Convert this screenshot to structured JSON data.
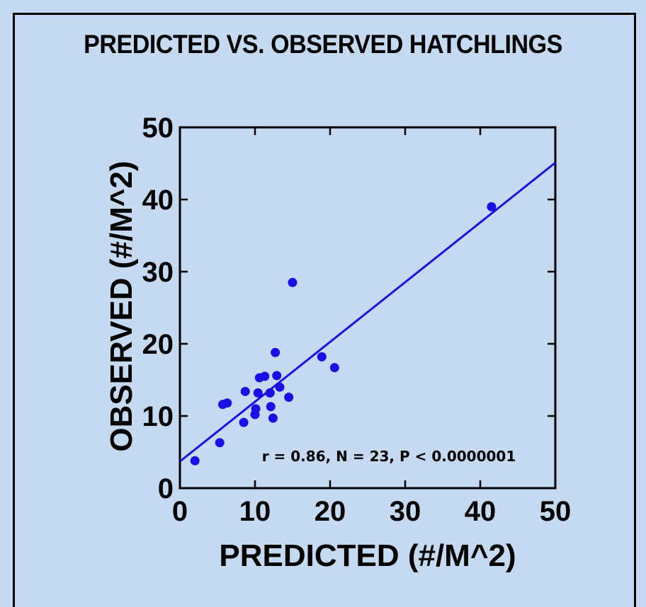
{
  "chart_data": {
    "type": "scatter",
    "title": "PREDICTED VS. OBSERVED HATCHLINGS",
    "xlabel": "PREDICTED (#/M^2)",
    "ylabel": "OBSERVED (#/M^2)",
    "xlim": [
      0,
      50
    ],
    "ylim": [
      0,
      50
    ],
    "xticks": [
      0,
      10,
      20,
      30,
      40,
      50
    ],
    "yticks": [
      0,
      10,
      20,
      30,
      40,
      50
    ],
    "grid": false,
    "annotation": "r = 0.86, N = 23, P < 0.0000001",
    "colors": {
      "points": "#1a10e6",
      "fit_line": "#1a10e6",
      "background": "#c5d9f0"
    },
    "series": [
      {
        "x": [
          2.0,
          5.3,
          5.7,
          6.3,
          8.5,
          8.7,
          10.0,
          10.1,
          10.4,
          10.6,
          11.3,
          12.0,
          12.1,
          12.4,
          12.7,
          12.9,
          13.3,
          14.5,
          15.0,
          18.9,
          20.6,
          41.5,
          12.0
        ],
        "y": [
          3.8,
          6.3,
          11.6,
          11.8,
          9.1,
          13.4,
          10.2,
          11.0,
          13.2,
          15.3,
          15.5,
          13.2,
          11.3,
          9.7,
          18.8,
          15.6,
          14.0,
          12.6,
          28.5,
          18.2,
          16.7,
          39.0,
          13.2
        ]
      }
    ],
    "fit_line": {
      "type": "linear",
      "x": [
        0,
        50
      ],
      "y": [
        3.7,
        45.1
      ]
    }
  }
}
